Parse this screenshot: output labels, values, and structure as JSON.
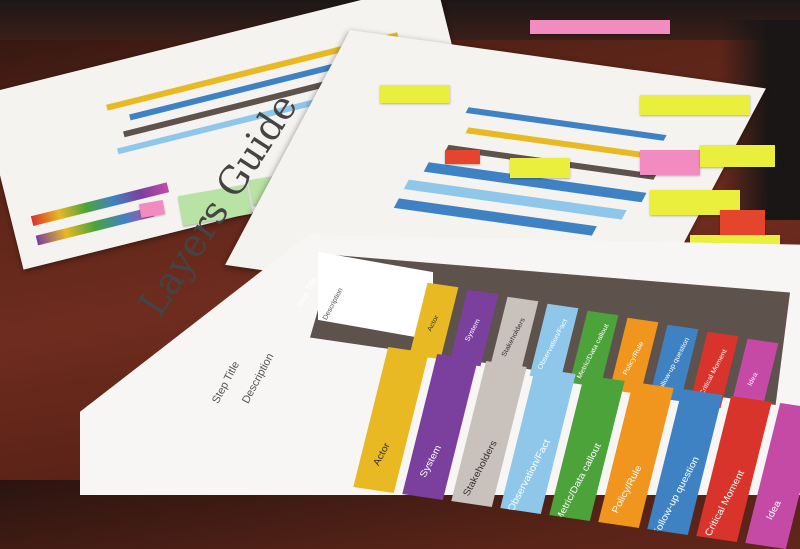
{
  "guide": {
    "title": "Layers Guide",
    "step_title": "Step Title",
    "description": "Description",
    "layers": [
      {
        "label": "Actor",
        "color": "#e8b923",
        "icon": "person-icon"
      },
      {
        "label": "System",
        "color": "#7b3f9e",
        "icon": "gear-icon"
      },
      {
        "label": "Stakeholders",
        "color": "#c9c1bc",
        "icon": "people-icon"
      },
      {
        "label": "Observation/Fact",
        "color": "#8fc7ea",
        "icon": "info-icon"
      },
      {
        "label": "Metric/Data callout",
        "color": "#4ba33a",
        "icon": "chart-icon"
      },
      {
        "label": "Policy/Rule",
        "color": "#f0961f",
        "icon": "gavel-icon"
      },
      {
        "label": "Follow-up question",
        "color": "#3f82c4",
        "icon": "question-icon"
      },
      {
        "label": "Critical Moment",
        "color": "#d9342b",
        "icon": "alert-icon"
      },
      {
        "label": "Idea",
        "color": "#c44aa6",
        "icon": "lightbulb-icon"
      }
    ]
  },
  "colors": {
    "table": "#6e2c1e",
    "paper": "#f4f3f0",
    "sticky_yellow": "#e9ef3c",
    "sticky_pink": "#f28bc0",
    "sticky_red": "#e5452c",
    "sticky_green": "#b9e3a4"
  }
}
